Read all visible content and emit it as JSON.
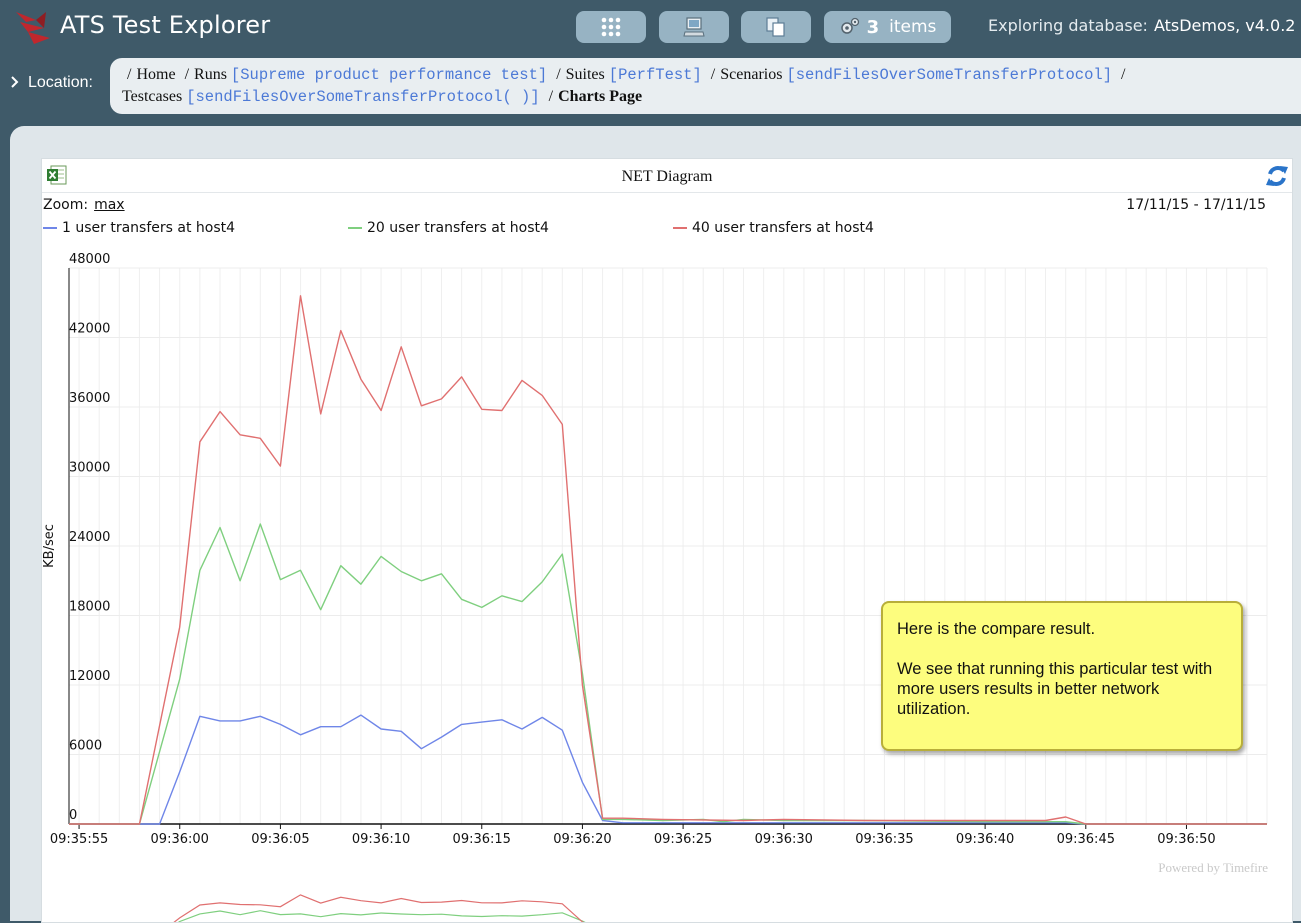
{
  "app": {
    "title": "ATS Test Explorer"
  },
  "header": {
    "buttons": [
      {
        "name": "apps",
        "icon": "grid-icon"
      },
      {
        "name": "machines",
        "icon": "computer-icon"
      },
      {
        "name": "copy",
        "icon": "copy-icon"
      },
      {
        "name": "items",
        "icon": "gears-icon",
        "count": "3",
        "label": "items"
      }
    ],
    "db_label": "Exploring database:",
    "db_name": "AtsDemos, v4.0.2"
  },
  "location": {
    "label": "Location:",
    "crumbs": [
      {
        "text": "Home"
      },
      {
        "text": "Runs",
        "link": "[Supreme product performance test]"
      },
      {
        "text": "Suites",
        "link": "[PerfTest]"
      },
      {
        "text": "Scenarios",
        "link": "[sendFilesOverSomeTransferProtocol]"
      },
      {
        "text": "Testcases",
        "link": "[sendFilesOverSomeTransferProtocol( )]"
      },
      {
        "text": "Charts Page"
      }
    ]
  },
  "panel": {
    "title": "NET Diagram",
    "zoom_label": "Zoom:",
    "zoom_value": "max",
    "date_range": "17/11/15 - 17/11/15",
    "powered_by": "Powered by Timefire"
  },
  "note": {
    "line1": "Here is the compare result.",
    "line2": "We see that running this particular test with more users results in better network utilization."
  },
  "chart_data": {
    "type": "line",
    "ylabel": "KB/sec",
    "ylim": [
      0,
      48000
    ],
    "yticks": [
      0,
      6000,
      12000,
      18000,
      24000,
      30000,
      36000,
      42000,
      48000
    ],
    "xticks": [
      "09:35:55",
      "09:36:00",
      "09:36:05",
      "09:36:10",
      "09:36:15",
      "09:36:20",
      "09:36:25",
      "09:36:30",
      "09:36:35",
      "09:36:40",
      "09:36:45",
      "09:36:50"
    ],
    "x_start_seconds": -5.5,
    "x_end_seconds": 54,
    "series": [
      {
        "name": "1 user transfers at host4",
        "color": "#6f86e8",
        "points": [
          [
            -5.5,
            0
          ],
          [
            -1,
            0
          ],
          [
            0,
            4500
          ],
          [
            1,
            9300
          ],
          [
            2,
            8900
          ],
          [
            3,
            8900
          ],
          [
            4,
            9300
          ],
          [
            5,
            8600
          ],
          [
            6,
            7700
          ],
          [
            7,
            8400
          ],
          [
            8,
            8400
          ],
          [
            9,
            9400
          ],
          [
            10,
            8200
          ],
          [
            11,
            8000
          ],
          [
            12,
            6500
          ],
          [
            13,
            7500
          ],
          [
            14,
            8600
          ],
          [
            15,
            8800
          ],
          [
            16,
            9000
          ],
          [
            17,
            8200
          ],
          [
            18,
            9200
          ],
          [
            19,
            8100
          ],
          [
            20,
            3600
          ],
          [
            21,
            300
          ],
          [
            22,
            100
          ],
          [
            30,
            100
          ],
          [
            40,
            100
          ],
          [
            44,
            100
          ],
          [
            45,
            0
          ],
          [
            54,
            0
          ]
        ]
      },
      {
        "name": "20 user transfers at host4",
        "color": "#7fcf7f",
        "points": [
          [
            -5.5,
            0
          ],
          [
            -2,
            0
          ],
          [
            0,
            12500
          ],
          [
            1,
            21900
          ],
          [
            2,
            25600
          ],
          [
            3,
            21000
          ],
          [
            4,
            25900
          ],
          [
            5,
            21100
          ],
          [
            6,
            21900
          ],
          [
            7,
            18500
          ],
          [
            8,
            22300
          ],
          [
            9,
            20700
          ],
          [
            10,
            23100
          ],
          [
            11,
            21800
          ],
          [
            12,
            21000
          ],
          [
            13,
            21600
          ],
          [
            14,
            19400
          ],
          [
            15,
            18700
          ],
          [
            16,
            19700
          ],
          [
            17,
            19200
          ],
          [
            18,
            20900
          ],
          [
            19,
            23300
          ],
          [
            20,
            13000
          ],
          [
            21,
            400
          ],
          [
            22,
            400
          ],
          [
            24,
            300
          ],
          [
            26,
            400
          ],
          [
            27,
            200
          ],
          [
            28,
            400
          ],
          [
            30,
            300
          ],
          [
            34,
            300
          ],
          [
            40,
            200
          ],
          [
            44,
            200
          ],
          [
            45,
            0
          ],
          [
            54,
            0
          ]
        ]
      },
      {
        "name": "40 user transfers at host4",
        "color": "#e07070",
        "points": [
          [
            -5.5,
            0
          ],
          [
            -2,
            0
          ],
          [
            0,
            17000
          ],
          [
            1,
            33000
          ],
          [
            2,
            35600
          ],
          [
            3,
            33600
          ],
          [
            4,
            33300
          ],
          [
            5,
            30900
          ],
          [
            6,
            45600
          ],
          [
            7,
            35400
          ],
          [
            8,
            42600
          ],
          [
            9,
            38400
          ],
          [
            10,
            35700
          ],
          [
            11,
            41200
          ],
          [
            12,
            36100
          ],
          [
            13,
            36700
          ],
          [
            14,
            38600
          ],
          [
            15,
            35800
          ],
          [
            16,
            35700
          ],
          [
            17,
            38300
          ],
          [
            18,
            37000
          ],
          [
            19,
            34500
          ],
          [
            20,
            12000
          ],
          [
            21,
            500
          ],
          [
            22,
            500
          ],
          [
            24,
            400
          ],
          [
            28,
            300
          ],
          [
            30,
            400
          ],
          [
            34,
            300
          ],
          [
            40,
            300
          ],
          [
            43,
            300
          ],
          [
            44,
            600
          ],
          [
            45,
            0
          ],
          [
            54,
            0
          ]
        ]
      }
    ]
  }
}
